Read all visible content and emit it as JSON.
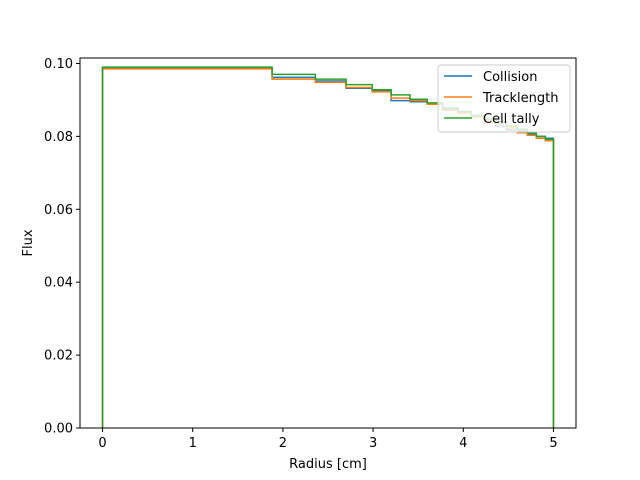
{
  "chart_data": {
    "type": "line",
    "subtype": "step",
    "title": "",
    "xlabel": "Radius [cm]",
    "ylabel": "Flux",
    "xlim": [
      -0.25,
      5.25
    ],
    "ylim": [
      0.0,
      0.1015
    ],
    "x_ticks": [
      0,
      1,
      2,
      3,
      4,
      5
    ],
    "x_tick_labels": [
      "0",
      "1",
      "2",
      "3",
      "4",
      "5"
    ],
    "y_ticks": [
      0.0,
      0.02,
      0.04,
      0.06,
      0.08,
      0.1
    ],
    "y_tick_labels": [
      "0.00",
      "0.02",
      "0.04",
      "0.06",
      "0.08",
      "0.10"
    ],
    "grid": false,
    "legend_position": "upper right",
    "values_note": "Bin values from ~2.36 cm onward are estimated from the image; bins behind the legend (~3.7-4.4 cm) are approximate and not precisely readable.",
    "bin_edges": [
      0,
      1.88,
      2.36,
      2.7,
      2.99,
      3.2,
      3.41,
      3.6,
      3.77,
      3.94,
      4.09,
      4.23,
      4.36,
      4.48,
      4.6,
      4.71,
      4.81,
      4.91,
      5.0
    ],
    "series": [
      {
        "name": "Collision",
        "color": "#1f77b4",
        "values": [
          0.0987,
          0.0962,
          0.0952,
          0.0932,
          0.0925,
          0.0898,
          0.0895,
          0.089,
          0.0875,
          0.0866,
          0.0855,
          0.0846,
          0.0827,
          0.0818,
          0.0815,
          0.0807,
          0.08,
          0.0795
        ]
      },
      {
        "name": "Tracklength",
        "color": "#ff7f0e",
        "values": [
          0.0985,
          0.0957,
          0.0948,
          0.0934,
          0.0922,
          0.0905,
          0.0898,
          0.0888,
          0.0872,
          0.0864,
          0.0853,
          0.0844,
          0.0834,
          0.0823,
          0.081,
          0.0803,
          0.0795,
          0.0788
        ]
      },
      {
        "name": "Cell tally",
        "color": "#2ca02c",
        "values": [
          0.099,
          0.097,
          0.0957,
          0.0942,
          0.0928,
          0.0914,
          0.0902,
          0.0892,
          0.0878,
          0.0868,
          0.0858,
          0.0848,
          0.084,
          0.0828,
          0.082,
          0.081,
          0.08,
          0.0792
        ]
      }
    ]
  },
  "legend": {
    "items": [
      {
        "label": "Collision",
        "color": "#1f77b4"
      },
      {
        "label": "Tracklength",
        "color": "#ff7f0e"
      },
      {
        "label": "Cell tally",
        "color": "#2ca02c"
      }
    ]
  },
  "axes": {
    "xlabel": "Radius [cm]",
    "ylabel": "Flux"
  }
}
